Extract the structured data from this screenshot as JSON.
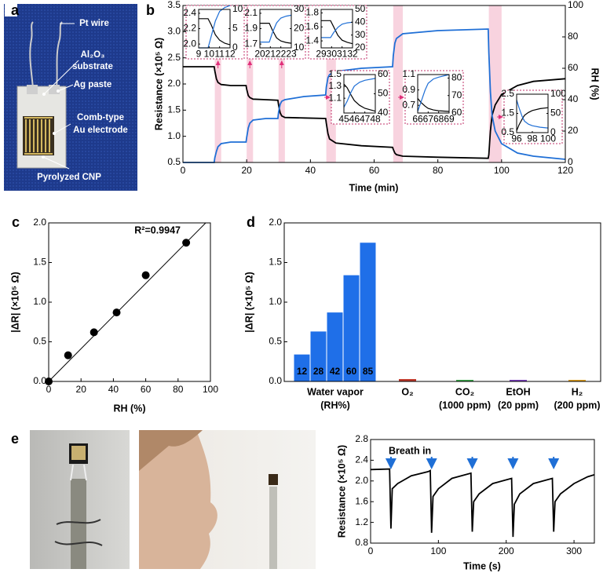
{
  "panel_a": {
    "letter": "a",
    "labels": [
      "Pt wire",
      "Al₂O₃",
      "substrate",
      "Ag paste",
      "Comb-type",
      "Au electrode",
      "Pyrolyzed CNP"
    ]
  },
  "panel_e": {
    "letter": "e"
  },
  "chart_data": [
    {
      "panel": "b",
      "type": "line",
      "xlabel": "Time (min)",
      "ylabel": "Resistance (×10⁵ Ω)",
      "y2label": "RH (%)",
      "xlim": [
        0,
        120
      ],
      "xticks": [
        0,
        20,
        40,
        60,
        80,
        100,
        120
      ],
      "ylim": [
        0.5,
        3.5
      ],
      "yticks": [
        0.5,
        {
          "value": 1,
          "label": "1.0"
        },
        1.5,
        {
          "value": 2,
          "label": "2.0"
        },
        2.5,
        {
          "value": 3,
          "label": "3.0"
        },
        3.5
      ],
      "y2lim": [
        0,
        100
      ],
      "y2ticks": [
        0,
        20,
        40,
        60,
        80,
        100
      ],
      "highlights": [
        [
          10,
          12
        ],
        [
          20,
          22
        ],
        [
          30,
          32
        ],
        [
          45,
          48
        ],
        [
          66,
          69
        ],
        [
          96,
          100
        ]
      ],
      "x": [
        0,
        9.8,
        10,
        10.5,
        11,
        12,
        15,
        19.8,
        20,
        20.5,
        21,
        22,
        26,
        29.8,
        30,
        30.5,
        31,
        32,
        38,
        44.8,
        45,
        45.5,
        46,
        48,
        56,
        65.8,
        66,
        66.5,
        67,
        69,
        80,
        95.8,
        96,
        96.5,
        97,
        98,
        100,
        105,
        110,
        120
      ],
      "series": [
        {
          "color": "#000000",
          "values": [
            2.33,
            2.33,
            2.25,
            2.1,
            2.03,
            1.99,
            1.97,
            1.97,
            1.9,
            1.78,
            1.74,
            1.71,
            1.7,
            1.69,
            1.6,
            1.45,
            1.39,
            1.36,
            1.35,
            1.34,
            1.25,
            1.05,
            0.95,
            0.87,
            0.82,
            0.79,
            0.75,
            0.68,
            0.65,
            0.62,
            0.6,
            0.58,
            0.65,
            1.1,
            1.4,
            1.6,
            1.8,
            1.97,
            2.05,
            2.1
          ]
        },
        {
          "color": "#1f6fd6",
          "axis": "y2",
          "values": [
            0,
            0,
            3,
            7,
            10,
            12,
            13,
            13,
            16,
            22,
            25,
            27,
            28,
            28,
            32,
            37,
            39,
            40,
            42,
            43,
            48,
            54,
            56,
            58,
            60,
            61,
            68,
            76,
            79,
            82,
            84,
            85,
            70,
            45,
            30,
            20,
            12,
            6,
            4,
            2
          ]
        }
      ],
      "insets": [
        {
          "xlim": [
            9,
            12
          ],
          "xticks": [
            9,
            10,
            11,
            12
          ],
          "ylim": [
            1.95,
            2.45
          ],
          "yticks": [
            {
              "value": 2,
              "label": "2.0"
            },
            2.2,
            2.4
          ],
          "y2lim": [
            0,
            10
          ],
          "y2ticks": [
            0,
            5,
            10
          ],
          "x": [
            9,
            9.9,
            10.2,
            10.6,
            11,
            11.5,
            12
          ],
          "series": [
            {
              "values": [
                2.33,
                2.33,
                2.25,
                2.12,
                2.05,
                2.01,
                1.99
              ]
            },
            {
              "values": [
                0,
                0,
                3,
                7,
                9.5,
                10.5,
                11
              ]
            }
          ]
        },
        {
          "xlim": [
            20,
            23
          ],
          "xticks": [
            20,
            21,
            22,
            23
          ],
          "ylim": [
            1.65,
            2.15
          ],
          "yticks": [
            1.7,
            1.9,
            2.1
          ],
          "y2lim": [
            10,
            30
          ],
          "y2ticks": [
            10,
            20,
            30
          ],
          "x": [
            20,
            20.9,
            21.2,
            21.6,
            22,
            22.5,
            23
          ],
          "series": [
            {
              "values": [
                1.97,
                1.97,
                1.88,
                1.78,
                1.74,
                1.72,
                1.71
              ]
            },
            {
              "values": [
                13,
                13,
                18,
                23,
                25.5,
                26.5,
                27
              ]
            }
          ]
        },
        {
          "xlim": [
            29,
            32
          ],
          "xticks": [
            29,
            30,
            31,
            32
          ],
          "ylim": [
            1.3,
            1.85
          ],
          "yticks": [
            1.4,
            1.6,
            1.8
          ],
          "y2lim": [
            20,
            50
          ],
          "y2ticks": [
            20,
            30,
            40,
            50
          ],
          "x": [
            29,
            29.9,
            30.2,
            30.6,
            31,
            31.5,
            32
          ],
          "series": [
            {
              "values": [
                1.69,
                1.69,
                1.6,
                1.48,
                1.41,
                1.38,
                1.36
              ]
            },
            {
              "values": [
                28,
                28,
                32,
                36,
                38.5,
                39.5,
                40
              ]
            }
          ]
        },
        {
          "xlim": [
            45,
            48
          ],
          "xticks": [
            45,
            46,
            47,
            48
          ],
          "ylim": [
            0.85,
            1.5
          ],
          "yticks": [
            1.1,
            1.3,
            1.5
          ],
          "y2lim": [
            40,
            60
          ],
          "y2ticks": [
            40,
            50,
            60
          ],
          "x": [
            45,
            45.3,
            45.7,
            46,
            46.5,
            47,
            48
          ],
          "series": [
            {
              "values": [
                1.34,
                1.28,
                1.15,
                1.06,
                0.98,
                0.93,
                0.88
              ]
            },
            {
              "values": [
                43,
                46,
                51,
                54,
                56,
                57,
                58
              ]
            }
          ]
        },
        {
          "xlim": [
            66,
            69
          ],
          "xticks": [
            66,
            67,
            68,
            69
          ],
          "ylim": [
            0.6,
            1.1
          ],
          "yticks": [
            0.7,
            0.9,
            1.1
          ],
          "y2lim": [
            60,
            82
          ],
          "y2ticks": [
            60,
            70,
            80
          ],
          "x": [
            66,
            66.3,
            66.7,
            67,
            67.5,
            68,
            69
          ],
          "series": [
            {
              "values": [
                0.79,
                0.74,
                0.69,
                0.66,
                0.64,
                0.63,
                0.62
              ]
            },
            {
              "values": [
                61,
                66,
                73,
                77,
                79.5,
                80.5,
                82
              ]
            }
          ]
        },
        {
          "xlim": [
            96,
            100
          ],
          "xticks": [
            96,
            98,
            100
          ],
          "ylim": [
            0.5,
            2.5
          ],
          "yticks": [
            0.5,
            1.5,
            2.5
          ],
          "y2lim": [
            0,
            100
          ],
          "y2ticks": [
            0,
            50,
            100
          ],
          "x": [
            96,
            96.3,
            96.7,
            97,
            97.5,
            98,
            99,
            100
          ],
          "series": [
            {
              "values": [
                0.6,
                0.9,
                1.2,
                1.4,
                1.55,
                1.65,
                1.75,
                1.8
              ]
            },
            {
              "values": [
                85,
                65,
                42,
                30,
                22,
                18,
                14,
                12
              ]
            }
          ]
        }
      ]
    },
    {
      "panel": "c",
      "type": "scatter",
      "xlabel": "RH (%)",
      "ylabel": "|ΔR| (×10⁵ Ω)",
      "annotation": "R²=0.9947",
      "xlim": [
        0,
        100
      ],
      "xticks": [
        0,
        20,
        40,
        60,
        80,
        100
      ],
      "ylim": [
        0,
        2
      ],
      "yticks": [
        {
          "value": 0,
          "label": "0.0"
        },
        0.5,
        {
          "value": 1,
          "label": "1.0"
        },
        1.5,
        {
          "value": 2,
          "label": "2.0"
        }
      ],
      "x": [
        0,
        12,
        28,
        42,
        60,
        85
      ],
      "values": [
        0,
        0.33,
        0.62,
        0.87,
        1.34,
        1.75
      ],
      "color": "#000000",
      "fit": {
        "slope": 0.0206,
        "intercept": 0
      }
    },
    {
      "panel": "d",
      "type": "bar",
      "ylabel": "|ΔR| (×10⁵ Ω)",
      "ylim": [
        0,
        2
      ],
      "yticks": [
        {
          "value": 0,
          "label": "0.0"
        },
        0.5,
        {
          "value": 1,
          "label": "1.0"
        },
        1.5,
        {
          "value": 2,
          "label": "2.0"
        }
      ],
      "groups": [
        {
          "label": "Water vapor",
          "sublabel": "(RH%)",
          "color": "#1f6fe8",
          "values": [
            0.34,
            0.63,
            0.87,
            1.34,
            1.75
          ],
          "bar_labels": [
            12,
            28,
            42,
            60,
            85
          ]
        },
        {
          "label": "O₂",
          "color": "#c0392b",
          "values": [
            0.03
          ]
        },
        {
          "label": "CO₂",
          "sublabel": "(1000 ppm)",
          "color": "#3aa64a",
          "values": [
            0.02
          ]
        },
        {
          "label": "EtOH",
          "sublabel": "(20 ppm)",
          "color": "#7b3fbf",
          "values": [
            0.02
          ]
        },
        {
          "label": "H₂",
          "sublabel": "(200 ppm)",
          "color": "#e0a020",
          "values": [
            0.02
          ]
        }
      ]
    },
    {
      "type": "line",
      "xlabel": "Time (s)",
      "ylabel": "Resistance (×10⁵ Ω)",
      "annotation": "Breath in",
      "annotation_color": "#1f6fd6",
      "events": [
        30,
        90,
        150,
        210,
        270
      ],
      "xlim": [
        0,
        330
      ],
      "xticks": [
        0,
        100,
        200,
        300
      ],
      "ylim": [
        0.8,
        2.8
      ],
      "yticks": [
        0.8,
        1.2,
        1.6,
        {
          "value": 2,
          "label": "2.0"
        },
        2.4,
        2.8
      ],
      "x": [
        0,
        28,
        30,
        32,
        40,
        60,
        85,
        88,
        90,
        92,
        100,
        120,
        148,
        150,
        152,
        160,
        180,
        208,
        210,
        212,
        220,
        240,
        268,
        270,
        272,
        280,
        300,
        320,
        330
      ],
      "series": [
        {
          "color": "#000000",
          "values": [
            2.22,
            2.23,
            1.08,
            1.85,
            1.95,
            2.1,
            2.18,
            2.2,
            1.0,
            1.7,
            1.85,
            2.05,
            2.15,
            1.02,
            1.6,
            1.75,
            1.95,
            2.05,
            0.92,
            1.55,
            1.75,
            1.95,
            2.05,
            1.02,
            1.6,
            1.75,
            1.95,
            2.08,
            2.12
          ]
        }
      ]
    }
  ]
}
